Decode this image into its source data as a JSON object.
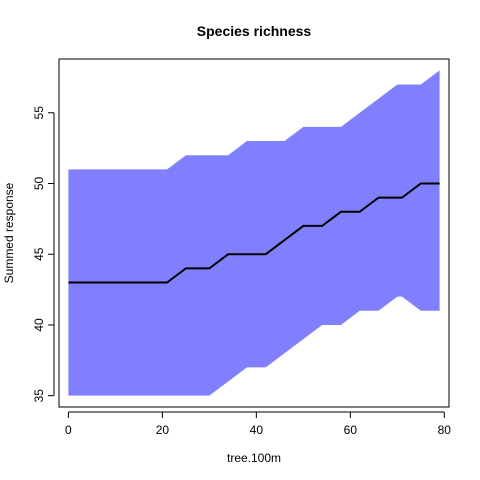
{
  "chart_data": {
    "type": "area",
    "title": "Species richness",
    "xlabel": "tree.100m",
    "ylabel": "Summed response",
    "xlim": [
      -2,
      81
    ],
    "ylim": [
      34.2,
      58.8
    ],
    "xticks": [
      0,
      20,
      40,
      60,
      80
    ],
    "yticks": [
      35,
      40,
      45,
      50,
      55
    ],
    "grid": false,
    "band_color": "#8080ff",
    "line_color": "#000000",
    "x": [
      0,
      21,
      25,
      29,
      30,
      34,
      38,
      42,
      46,
      50,
      54,
      58,
      62,
      66,
      70,
      71,
      75,
      79
    ],
    "mean": [
      43,
      43,
      44,
      44,
      44,
      45,
      45,
      45,
      46,
      47,
      47,
      48,
      48,
      49,
      49,
      49,
      50,
      50
    ],
    "upper": [
      51,
      51,
      52,
      52,
      52,
      52,
      53,
      53,
      53,
      54,
      54,
      54,
      55,
      56,
      57,
      57,
      57,
      58
    ],
    "lower": [
      35,
      35,
      35,
      35,
      35,
      36,
      37,
      37,
      38,
      39,
      40,
      40,
      41,
      41,
      42,
      42,
      41,
      41
    ]
  }
}
